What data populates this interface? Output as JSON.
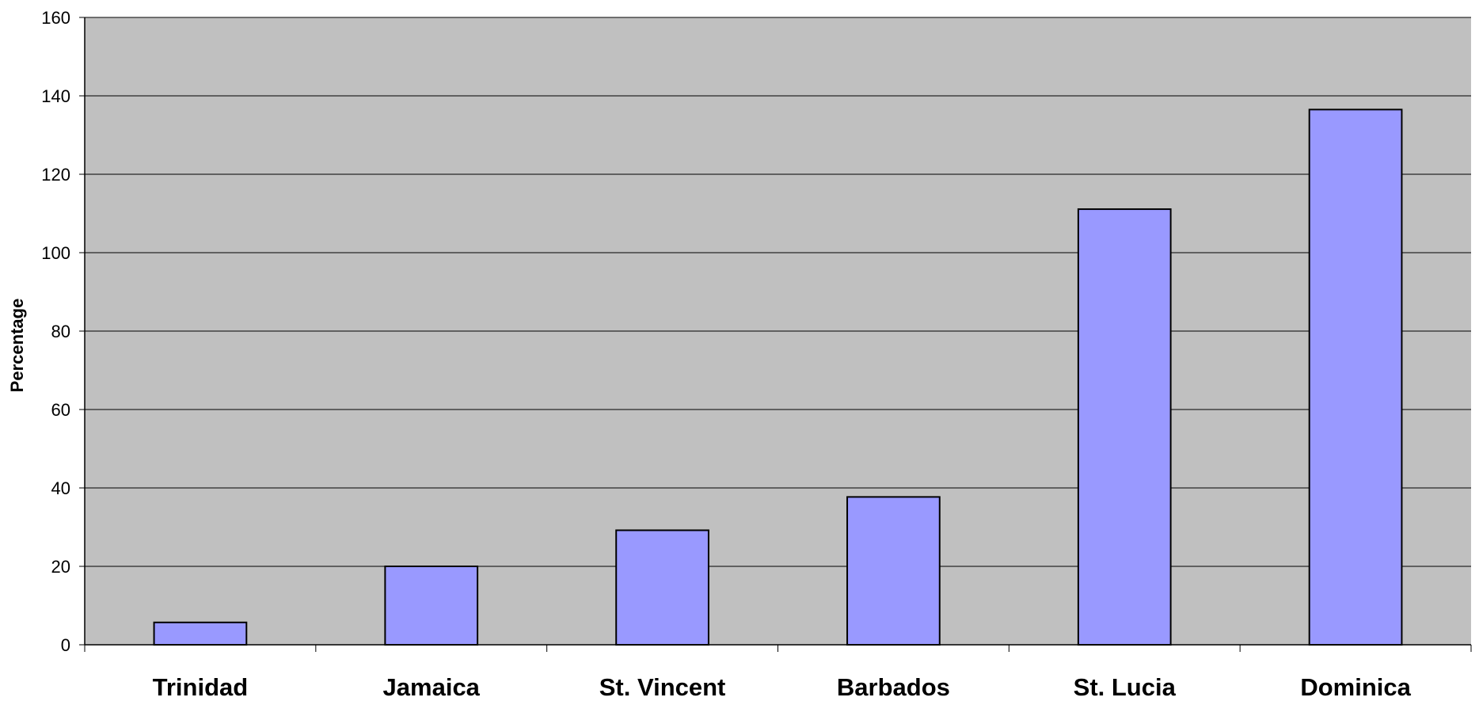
{
  "chart_data": {
    "type": "bar",
    "title": "",
    "xlabel": "",
    "ylabel": "Percentage",
    "categories": [
      "Trinidad",
      "Jamaica",
      "St. Vincent",
      "Barbados",
      "St. Lucia",
      "Dominica"
    ],
    "values": [
      5.7,
      20,
      29.2,
      37.7,
      111.1,
      136.5
    ],
    "ylim": [
      0,
      160
    ],
    "yticks": [
      "0",
      "20",
      "40",
      "60",
      "80",
      "100",
      "120",
      "140",
      "160"
    ],
    "grid": true,
    "legend": "none",
    "colors": {
      "plot_background": "#c0c0c0",
      "bar_fill": "#9999ff",
      "bar_stroke": "#000000",
      "gridline": "#000000"
    }
  }
}
